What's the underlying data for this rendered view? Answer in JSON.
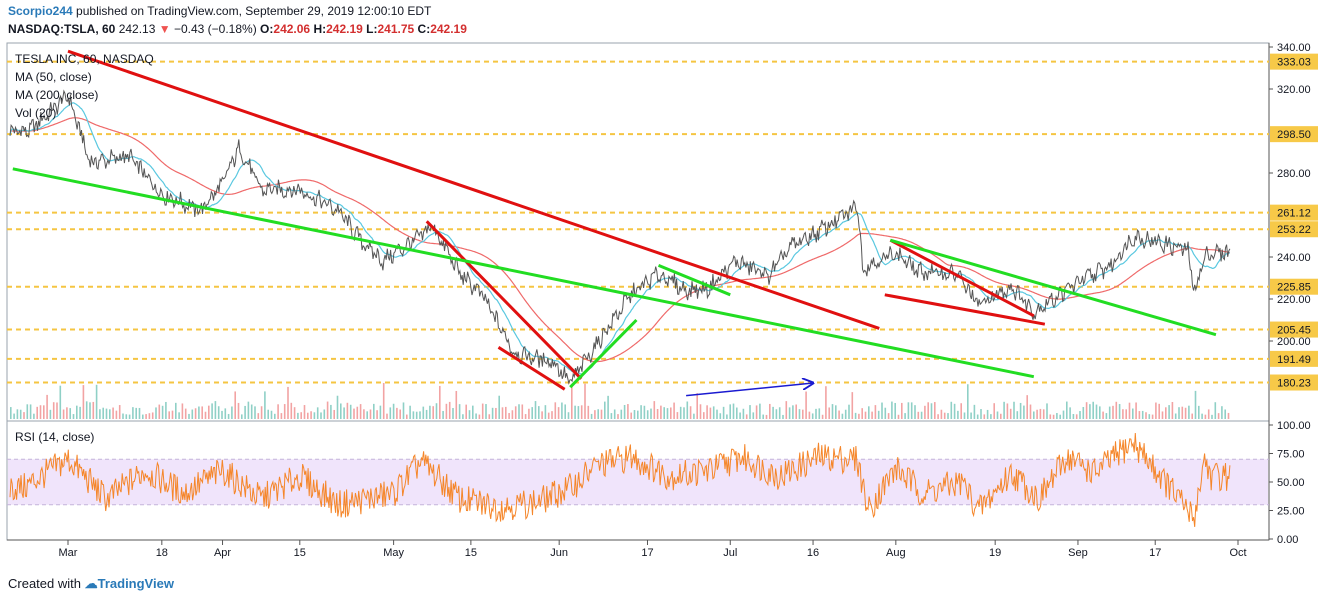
{
  "header": {
    "author": "Scorpio244",
    "published": "published on TradingView.com, September 29, 2019 12:00:10 EDT",
    "symbol": "NASDAQ:TSLA, 60",
    "last": "242.13",
    "change_arrow": "▼",
    "change": "−0.43 (−0.18%)",
    "open_label": "O:",
    "open": "242.06",
    "high_label": "H:",
    "high": "242.19",
    "low_label": "L:",
    "low": "241.75",
    "close_label": "C:",
    "close": "242.19"
  },
  "indicators": {
    "title": "TESLA INC, 60, NASDAQ",
    "ma50": "MA (50, close)",
    "ma200": "MA (200, close)",
    "vol": "Vol (20)",
    "rsi": "RSI (14, close)"
  },
  "footer": {
    "created_with": "Created with",
    "brand": "TradingView"
  },
  "colors": {
    "price": "#555555",
    "ma50": "#5ac8e0",
    "ma200": "#ef6a6a",
    "trend_red": "#e01010",
    "trend_green": "#22dd22",
    "arrow_blue": "#1a1ad0",
    "level": "#f5c542",
    "rsi": "#f5862a",
    "rsi_band": "#f0e4fb"
  },
  "chart_data": [
    {
      "type": "line",
      "panel": "price",
      "symbol": "TSLA",
      "y_scale": [
        180,
        340
      ],
      "y_ticks": [
        "340.00",
        "320.00",
        "280.00",
        "240.00",
        "220.00",
        "200.00"
      ],
      "x_ticks": [
        "Mar",
        "18",
        "Apr",
        "15",
        "May",
        "15",
        "Jun",
        "17",
        "Jul",
        "16",
        "Aug",
        "19",
        "Sep",
        "17",
        "Oct"
      ],
      "horizontal_levels": [
        "333.03",
        "298.50",
        "261.12",
        "253.22",
        "225.85",
        "205.45",
        "191.49",
        "180.23"
      ],
      "price_path": [
        [
          "Feb 25",
          300
        ],
        [
          "Mar 1",
          317
        ],
        [
          "Mar 5",
          285
        ],
        [
          "Mar 12",
          288
        ],
        [
          "Mar 18",
          270
        ],
        [
          "Mar 25",
          262
        ],
        [
          "Apr 1",
          275
        ],
        [
          "Apr 4",
          292
        ],
        [
          "Apr 8",
          272
        ],
        [
          "Apr 15",
          272
        ],
        [
          "Apr 22",
          262
        ],
        [
          "Apr 26",
          248
        ],
        [
          "Apr 30",
          238
        ],
        [
          "May 6",
          250
        ],
        [
          "May 8",
          255
        ],
        [
          "May 13",
          232
        ],
        [
          "May 17",
          222
        ],
        [
          "May 23",
          194
        ],
        [
          "May 30",
          190
        ],
        [
          "Jun 3",
          180
        ],
        [
          "Jun 10",
          207
        ],
        [
          "Jun 14",
          222
        ],
        [
          "Jun 19",
          232
        ],
        [
          "Jun 24",
          224
        ],
        [
          "Jun 28",
          225
        ],
        [
          "Jul 2",
          238
        ],
        [
          "Jul 8",
          231
        ],
        [
          "Jul 12",
          245
        ],
        [
          "Jul 17",
          252
        ],
        [
          "Jul 23",
          262
        ],
        [
          "Jul 24",
          266
        ],
        [
          "Jul 25",
          235
        ],
        [
          "Jul 31",
          242
        ],
        [
          "Aug 5",
          233
        ],
        [
          "Aug 12",
          232
        ],
        [
          "Aug 16",
          217
        ],
        [
          "Aug 22",
          226
        ],
        [
          "Aug 26",
          214
        ],
        [
          "Sep 3",
          228
        ],
        [
          "Sep 9",
          236
        ],
        [
          "Sep 13",
          250
        ],
        [
          "Sep 19",
          246
        ],
        [
          "Sep 23",
          243
        ],
        [
          "Sep 24",
          223
        ],
        [
          "Sep 26",
          240
        ],
        [
          "Sep 27",
          242
        ]
      ],
      "series": [
        {
          "name": "MA (50, close)",
          "color": "#5ac8e0"
        },
        {
          "name": "MA (200, close)",
          "color": "#ef6a6a"
        }
      ],
      "trendlines": [
        {
          "color": "red",
          "from": [
            "Mar 1",
            338
          ],
          "to": [
            "Jul 28",
            206
          ]
        },
        {
          "color": "red",
          "from": [
            "May 7",
            257
          ],
          "to": [
            "Jun 5",
            182
          ]
        },
        {
          "color": "red",
          "from": [
            "May 20",
            197
          ],
          "to": [
            "Jun 2",
            177
          ]
        },
        {
          "color": "red",
          "from": [
            "Jul 29",
            222
          ],
          "to": [
            "Aug 28",
            208
          ]
        },
        {
          "color": "red",
          "from": [
            "Jul 30",
            248
          ],
          "to": [
            "Aug 26",
            212
          ]
        },
        {
          "color": "green",
          "from": [
            "Feb 22",
            282
          ],
          "to": [
            "Aug 26",
            183
          ]
        },
        {
          "color": "green",
          "from": [
            "Jun 3",
            178
          ],
          "to": [
            "Jun 15",
            210
          ]
        },
        {
          "color": "green",
          "from": [
            "Jun 19",
            236
          ],
          "to": [
            "Jul 1",
            222
          ]
        },
        {
          "color": "green",
          "from": [
            "Jul 30",
            248
          ],
          "to": [
            "Sep 28",
            203
          ]
        },
        {
          "color": "blue",
          "from": [
            "Jun 24",
            174
          ],
          "to": [
            "Jul 16",
            180
          ],
          "arrow": true
        }
      ]
    },
    {
      "type": "line",
      "panel": "rsi",
      "name": "RSI (14, close)",
      "y_scale": [
        0,
        100
      ],
      "y_ticks": [
        "100.00",
        "75.00",
        "50.00",
        "25.00",
        "0.00"
      ],
      "band": [
        30,
        70
      ],
      "points": [
        [
          "Feb 24",
          45
        ],
        [
          "Mar 1",
          70
        ],
        [
          "Mar 8",
          35
        ],
        [
          "Mar 15",
          60
        ],
        [
          "Mar 22",
          40
        ],
        [
          "Apr 1",
          60
        ],
        [
          "Apr 8",
          35
        ],
        [
          "Apr 15",
          55
        ],
        [
          "Apr 22",
          30
        ],
        [
          "May 1",
          40
        ],
        [
          "May 6",
          68
        ],
        [
          "May 13",
          35
        ],
        [
          "May 20",
          28
        ],
        [
          "May 27",
          32
        ],
        [
          "Jun 3",
          45
        ],
        [
          "Jun 8",
          65
        ],
        [
          "Jun 14",
          72
        ],
        [
          "Jun 21",
          55
        ],
        [
          "Jun 28",
          60
        ],
        [
          "Jul 3",
          72
        ],
        [
          "Jul 10",
          55
        ],
        [
          "Jul 17",
          72
        ],
        [
          "Jul 24",
          70
        ],
        [
          "Jul 26",
          25
        ],
        [
          "Jul 31",
          62
        ],
        [
          "Aug 6",
          40
        ],
        [
          "Aug 13",
          50
        ],
        [
          "Aug 16",
          25
        ],
        [
          "Aug 22",
          58
        ],
        [
          "Aug 27",
          35
        ],
        [
          "Sep 1",
          72
        ],
        [
          "Sep 6",
          58
        ],
        [
          "Sep 13",
          85
        ],
        [
          "Sep 18",
          55
        ],
        [
          "Sep 24",
          18
        ],
        [
          "Sep 26",
          72
        ],
        [
          "Sep 27",
          55
        ]
      ]
    }
  ]
}
